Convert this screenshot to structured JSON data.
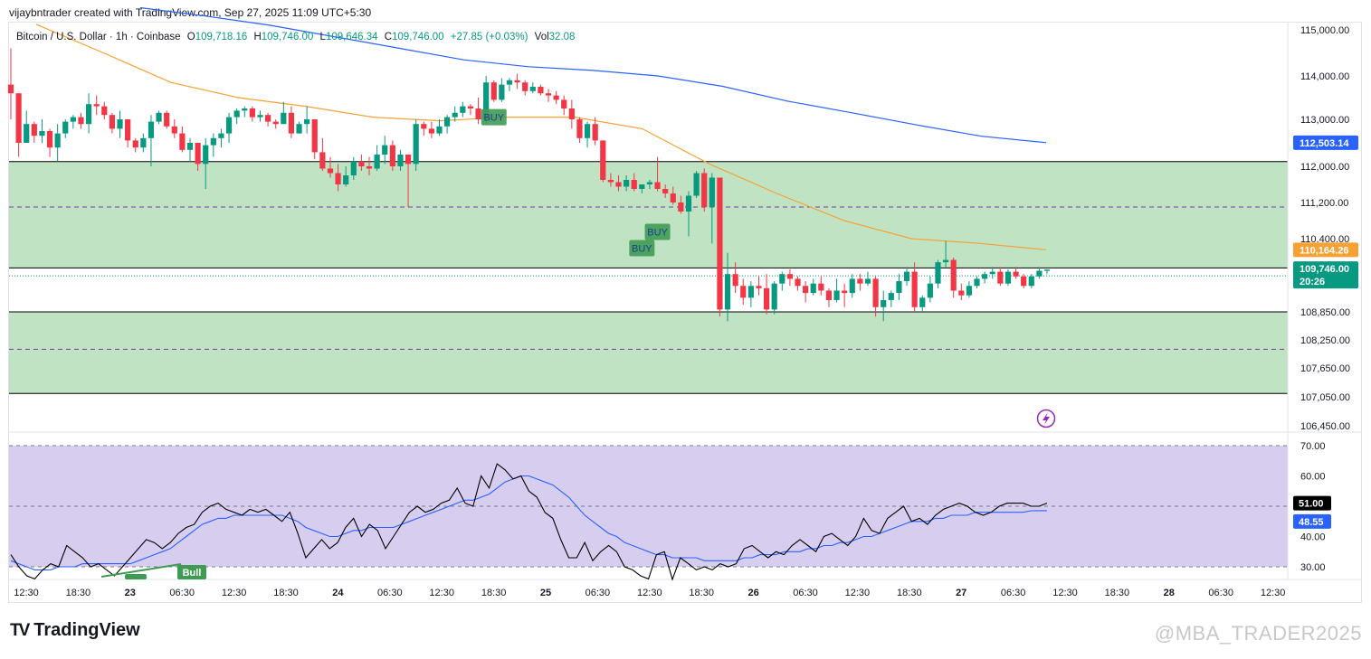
{
  "header": {
    "created_by": "vijaybntrader created with TradingView.com, Sep 27, 2025 11:09 UTC+5:30"
  },
  "legend": {
    "symbol": "Bitcoin / U.S. Dollar · 1h · Coinbase",
    "o_label": "O",
    "o_value": "109,718.16",
    "h_label": "H",
    "h_value": "109,746.00",
    "l_label": "L",
    "l_value": "109,646.34",
    "c_label": "C",
    "c_value": "109,746.00",
    "change": "+27.85 (+0.03%)",
    "vol_label": "Vol",
    "vol_value": "32.08"
  },
  "brand": {
    "logo": "TV",
    "name": "TradingView"
  },
  "watermark": "@MBA_TRADER2025",
  "colors": {
    "up": "#089981",
    "down": "#f23645",
    "ema_fast": "#f7a134",
    "ema_slow": "#2962ff",
    "zone_fill": "#c0e3c3",
    "rsi_band": "#d7cdee",
    "rsi_line": "#000000",
    "rsi_ma": "#2962ff",
    "signal": "#3f9b53"
  },
  "chart_data": {
    "type": "candlestick",
    "y_axis_ticks": [
      "115,000.00",
      "114,000.00",
      "113,000.00",
      "112,000.00",
      "111,200.00",
      "110,400.00",
      "108,850.00",
      "108,250.00",
      "107,650.00",
      "107,050.00",
      "106,450.00"
    ],
    "y_tick_values": [
      115000,
      114000,
      113000,
      112000,
      111200,
      110400,
      108850,
      108250,
      107650,
      107050,
      106450
    ],
    "x_axis_ticks": [
      {
        "label": "12:30",
        "day": false
      },
      {
        "label": "18:30",
        "day": false
      },
      {
        "label": "23",
        "day": true
      },
      {
        "label": "06:30",
        "day": false
      },
      {
        "label": "12:30",
        "day": false
      },
      {
        "label": "18:30",
        "day": false
      },
      {
        "label": "24",
        "day": true
      },
      {
        "label": "06:30",
        "day": false
      },
      {
        "label": "12:30",
        "day": false
      },
      {
        "label": "18:30",
        "day": false
      },
      {
        "label": "25",
        "day": true
      },
      {
        "label": "06:30",
        "day": false
      },
      {
        "label": "12:30",
        "day": false
      },
      {
        "label": "18:30",
        "day": false
      },
      {
        "label": "26",
        "day": true
      },
      {
        "label": "06:30",
        "day": false
      },
      {
        "label": "12:30",
        "day": false
      },
      {
        "label": "18:30",
        "day": false
      },
      {
        "label": "27",
        "day": true
      },
      {
        "label": "06:30",
        "day": false
      },
      {
        "label": "12:30",
        "day": false
      },
      {
        "label": "18:30",
        "day": false
      },
      {
        "label": "28",
        "day": true
      },
      {
        "label": "06:30",
        "day": false
      },
      {
        "label": "12:30",
        "day": false
      }
    ],
    "zones": [
      {
        "top": 112100,
        "bottom": 109780,
        "mid": 111100
      },
      {
        "top": 108850,
        "bottom": 107120,
        "mid": 108050
      }
    ],
    "current_price_line": 109746,
    "price_tags": [
      {
        "label": "112,503.14",
        "value": 112503.14,
        "color": "#2962ff"
      },
      {
        "label": "110,164.26",
        "value": 110164.26,
        "color": "#f7a134"
      },
      {
        "label": "109,746.00",
        "sub": "20:26",
        "value": 109746,
        "color": "#089981"
      }
    ],
    "ema_slow": [
      115480,
      115300,
      115100,
      114850,
      114600,
      114350,
      114200,
      114120,
      114000,
      113760,
      113420,
      113150,
      112880,
      112640,
      112503
    ],
    "ema_fast": [
      115120,
      114500,
      113850,
      113500,
      113300,
      113050,
      112970,
      113050,
      113050,
      112800,
      112050,
      111400,
      110800,
      110400,
      110300,
      110164
    ],
    "ohlc": [
      [
        113800,
        114600,
        113000,
        113600
      ],
      [
        113600,
        113600,
        112200,
        112500
      ],
      [
        112500,
        113200,
        112500,
        112900
      ],
      [
        112900,
        112950,
        112500,
        112650
      ],
      [
        112650,
        113000,
        112500,
        112750
      ],
      [
        112750,
        112800,
        112200,
        112400
      ],
      [
        112400,
        112900,
        112100,
        112700
      ],
      [
        112700,
        113000,
        112600,
        112950
      ],
      [
        112950,
        113100,
        112800,
        113050
      ],
      [
        113050,
        113150,
        112800,
        112900
      ],
      [
        112900,
        113600,
        112700,
        113350
      ],
      [
        113350,
        113550,
        113100,
        113300
      ],
      [
        113300,
        113400,
        113000,
        113100
      ],
      [
        113100,
        113150,
        112700,
        112800
      ],
      [
        112800,
        113200,
        112600,
        113000
      ],
      [
        113000,
        113000,
        112400,
        112550
      ],
      [
        112550,
        112600,
        112300,
        112400
      ],
      [
        112400,
        112700,
        112300,
        112600
      ],
      [
        112600,
        113100,
        112000,
        112950
      ],
      [
        112950,
        113200,
        112900,
        113150
      ],
      [
        113150,
        113200,
        112800,
        112850
      ],
      [
        112850,
        113000,
        112600,
        112700
      ],
      [
        112700,
        112850,
        112300,
        112350
      ],
      [
        112350,
        112600,
        112100,
        112500
      ],
      [
        112500,
        112500,
        111900,
        112050
      ],
      [
        112050,
        112600,
        111500,
        112450
      ],
      [
        112450,
        112700,
        112200,
        112600
      ],
      [
        112600,
        112800,
        112400,
        112700
      ],
      [
        112700,
        113150,
        112500,
        113050
      ],
      [
        113050,
        113250,
        112900,
        113200
      ],
      [
        113200,
        113300,
        113050,
        113250
      ],
      [
        113250,
        113300,
        112950,
        113050
      ],
      [
        113050,
        113200,
        112950,
        113100
      ],
      [
        113100,
        113150,
        112850,
        112950
      ],
      [
        112950,
        113000,
        112800,
        112900
      ],
      [
        112900,
        113400,
        112900,
        113150
      ],
      [
        113150,
        113300,
        112600,
        112700
      ],
      [
        112700,
        112950,
        112700,
        112900
      ],
      [
        112900,
        113300,
        112700,
        113000
      ],
      [
        113000,
        113000,
        112150,
        112300
      ],
      [
        112300,
        112600,
        111900,
        111950
      ],
      [
        111950,
        112200,
        111750,
        111850
      ],
      [
        111850,
        112050,
        111450,
        111600
      ],
      [
        111600,
        112000,
        111550,
        111800
      ],
      [
        111800,
        112200,
        111700,
        112100
      ],
      [
        112100,
        112250,
        111900,
        112000
      ],
      [
        112000,
        112200,
        111800,
        111950
      ],
      [
        111950,
        112450,
        111900,
        112250
      ],
      [
        112250,
        112650,
        112050,
        112450
      ],
      [
        112450,
        112550,
        111900,
        112000
      ],
      [
        112000,
        112350,
        111900,
        112250
      ],
      [
        112250,
        112200,
        111100,
        112050
      ],
      [
        112050,
        113000,
        111900,
        112900
      ],
      [
        112900,
        112950,
        112650,
        112800
      ],
      [
        112800,
        112950,
        112600,
        112700
      ],
      [
        112700,
        113000,
        112650,
        112850
      ],
      [
        112850,
        113100,
        112700,
        113050
      ],
      [
        113050,
        113300,
        112950,
        113150
      ],
      [
        113150,
        113400,
        113050,
        113300
      ],
      [
        113300,
        113350,
        113100,
        113250
      ],
      [
        113250,
        113500,
        112900,
        113000
      ],
      [
        113000,
        114000,
        112900,
        113850
      ],
      [
        113850,
        113900,
        113400,
        113450
      ],
      [
        113450,
        113950,
        113400,
        113800
      ],
      [
        113800,
        113950,
        113650,
        113900
      ],
      [
        113900,
        114050,
        113700,
        113850
      ],
      [
        113850,
        113900,
        113550,
        113650
      ],
      [
        113650,
        113850,
        113600,
        113750
      ],
      [
        113750,
        113800,
        113550,
        113600
      ],
      [
        113600,
        113700,
        113400,
        113550
      ],
      [
        113550,
        113650,
        113350,
        113450
      ],
      [
        113450,
        113550,
        113100,
        113250
      ],
      [
        113250,
        113450,
        112800,
        113000
      ],
      [
        113000,
        113050,
        112500,
        112600
      ],
      [
        112600,
        112950,
        112400,
        112900
      ],
      [
        112900,
        113050,
        112450,
        112550
      ],
      [
        112550,
        112550,
        111650,
        111700
      ],
      [
        111700,
        111850,
        111550,
        111650
      ],
      [
        111650,
        111800,
        111450,
        111550
      ],
      [
        111550,
        111800,
        111450,
        111700
      ],
      [
        111700,
        111850,
        111450,
        111500
      ],
      [
        111500,
        111600,
        111400,
        111600
      ],
      [
        111600,
        111700,
        111500,
        111650
      ],
      [
        111650,
        112200,
        111450,
        111500
      ],
      [
        111500,
        111600,
        111300,
        111400
      ],
      [
        111400,
        111550,
        111150,
        111200
      ],
      [
        111200,
        111350,
        110950,
        111000
      ],
      [
        111000,
        111450,
        110450,
        111350
      ],
      [
        111350,
        111900,
        111300,
        111850
      ],
      [
        111850,
        111950,
        111000,
        111100
      ],
      [
        111100,
        111850,
        110300,
        111750
      ],
      [
        111750,
        111700,
        108750,
        108900
      ],
      [
        108900,
        110100,
        108650,
        109650
      ],
      [
        109650,
        109900,
        109250,
        109400
      ],
      [
        109400,
        109550,
        109000,
        109150
      ],
      [
        109150,
        109500,
        108950,
        109400
      ],
      [
        109400,
        109600,
        109200,
        109350
      ],
      [
        109350,
        109650,
        108800,
        108900
      ],
      [
        108900,
        109500,
        108800,
        109450
      ],
      [
        109450,
        109700,
        109300,
        109650
      ],
      [
        109650,
        109750,
        109400,
        109550
      ],
      [
        109550,
        109600,
        109300,
        109400
      ],
      [
        109400,
        109500,
        109050,
        109250
      ],
      [
        109250,
        109550,
        109200,
        109450
      ],
      [
        109450,
        109600,
        109200,
        109300
      ],
      [
        109300,
        109350,
        108950,
        109100
      ],
      [
        109100,
        109550,
        109050,
        109300
      ],
      [
        109300,
        109450,
        108950,
        109250
      ],
      [
        109250,
        109650,
        109150,
        109550
      ],
      [
        109550,
        109650,
        109300,
        109450
      ],
      [
        109450,
        109700,
        109400,
        109550
      ],
      [
        109550,
        109600,
        108750,
        108950
      ],
      [
        108950,
        109300,
        108650,
        109100
      ],
      [
        109100,
        109300,
        108950,
        109250
      ],
      [
        109250,
        109650,
        109100,
        109500
      ],
      [
        109500,
        109800,
        109400,
        109700
      ],
      [
        109700,
        109900,
        108850,
        108950
      ],
      [
        108950,
        109200,
        108850,
        109150
      ],
      [
        109150,
        109600,
        109050,
        109450
      ],
      [
        109450,
        109950,
        109350,
        109900
      ],
      [
        109900,
        110350,
        109800,
        109950
      ],
      [
        109950,
        110000,
        109150,
        109300
      ],
      [
        109300,
        109450,
        109100,
        109200
      ],
      [
        109200,
        109500,
        109150,
        109400
      ],
      [
        109400,
        109600,
        109350,
        109550
      ],
      [
        109550,
        109700,
        109450,
        109650
      ],
      [
        109650,
        109800,
        109550,
        109700
      ],
      [
        109700,
        109800,
        109400,
        109450
      ],
      [
        109450,
        109750,
        109400,
        109700
      ],
      [
        109700,
        109800,
        109550,
        109600
      ],
      [
        109600,
        109650,
        109350,
        109400
      ],
      [
        109400,
        109650,
        109350,
        109600
      ],
      [
        109600,
        109800,
        109550,
        109720
      ],
      [
        109718.16,
        109746,
        109646.34,
        109746
      ]
    ],
    "signals": [
      {
        "label": "BUY",
        "index": 62,
        "price": 113050
      },
      {
        "label": "BUY",
        "index": 81,
        "price": 110200
      },
      {
        "label": "BUY",
        "index": 83,
        "price": 110550
      }
    ],
    "rsi": {
      "band_top": 70,
      "band_mid": 50,
      "band_bottom": 30,
      "ticks": [
        "70.00",
        "60.00",
        "40.00",
        "30.00"
      ],
      "tick_values": [
        70,
        60,
        40,
        30
      ],
      "value_label": "51.00",
      "value": 51.0,
      "ma_label": "48.55",
      "ma_value": 48.55,
      "bull_label": "Bull",
      "line": [
        34,
        30,
        27,
        26,
        29,
        31,
        30,
        37,
        35,
        33,
        30,
        31,
        29,
        27,
        30,
        33,
        36,
        39,
        38,
        36,
        38,
        41,
        43,
        44,
        48,
        50,
        51,
        49,
        48,
        47,
        49,
        48,
        49,
        47,
        45,
        48,
        41,
        33,
        36,
        39,
        36,
        38,
        43,
        46,
        40,
        44,
        42,
        36,
        40,
        44,
        48,
        50,
        48,
        49,
        51,
        52,
        56,
        51,
        50,
        60,
        56,
        64,
        62,
        59,
        60,
        55,
        53,
        48,
        46,
        39,
        33,
        33,
        38,
        32,
        35,
        37,
        35,
        30,
        29,
        27,
        26,
        34,
        35,
        25,
        33,
        31,
        29,
        30,
        29,
        31,
        30,
        31,
        36,
        37,
        35,
        33,
        35,
        34,
        37,
        39,
        37,
        35,
        40,
        41,
        39,
        37,
        40,
        46,
        42,
        41,
        46,
        48,
        50,
        45,
        46,
        44,
        47,
        49,
        50,
        51,
        50,
        48,
        47,
        48,
        50,
        51,
        51,
        51,
        50,
        50,
        51
      ],
      "ma": [
        32,
        31,
        30,
        29,
        29,
        29,
        30,
        30,
        30,
        31,
        31,
        31,
        31,
        31,
        31,
        31,
        32,
        33,
        34,
        35,
        36,
        38,
        40,
        42,
        44,
        45,
        46,
        46,
        47,
        47,
        47,
        47,
        47,
        47,
        47,
        46,
        45,
        43,
        42,
        41,
        40,
        40,
        41,
        42,
        42,
        43,
        43,
        43,
        43,
        44,
        45,
        46,
        47,
        48,
        49,
        50,
        51,
        52,
        52,
        53,
        54,
        56,
        58,
        59,
        60,
        60,
        59,
        58,
        57,
        55,
        53,
        50,
        47,
        45,
        43,
        41,
        40,
        38,
        37,
        36,
        35,
        34,
        34,
        33,
        33,
        33,
        33,
        32,
        32,
        32,
        32,
        32,
        33,
        33,
        34,
        34,
        34,
        35,
        35,
        35,
        36,
        36,
        37,
        37,
        38,
        38,
        39,
        40,
        40,
        41,
        42,
        43,
        44,
        45,
        45,
        45,
        46,
        46,
        47,
        47,
        47,
        48,
        48,
        48,
        48,
        48,
        48,
        48,
        48.5,
        48.55,
        48.55
      ]
    }
  }
}
